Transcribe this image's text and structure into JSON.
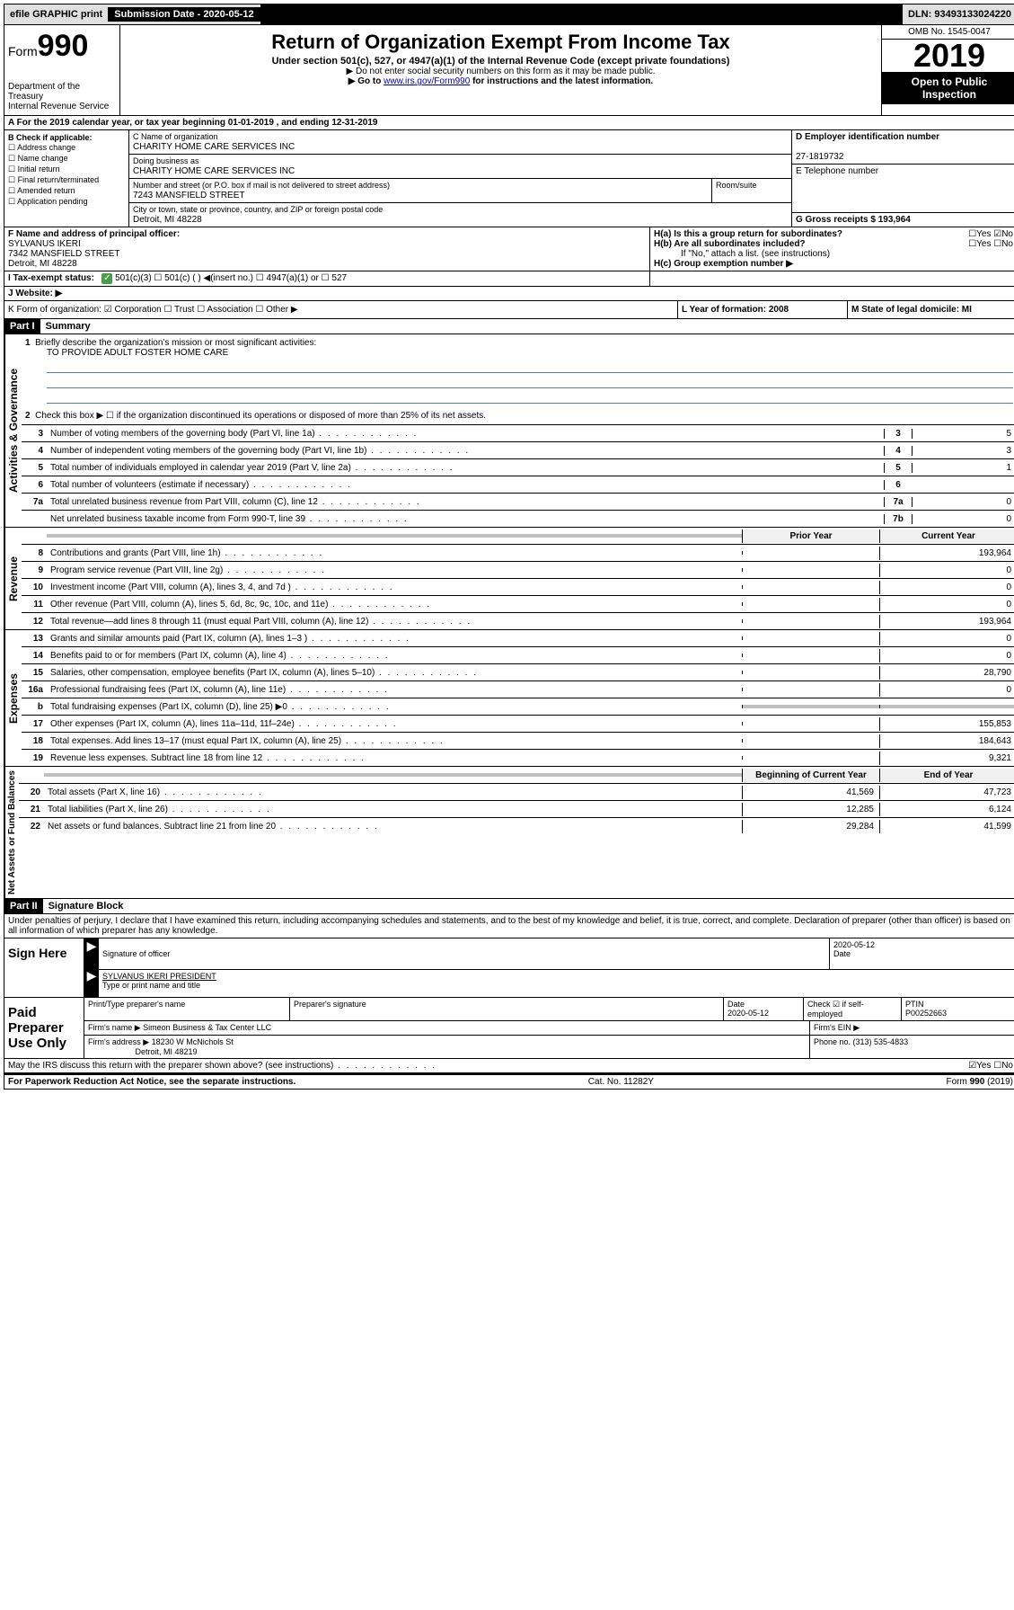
{
  "topbar": {
    "efile": "efile GRAPHIC print",
    "subm_label": "Submission Date - 2020-05-12",
    "dln": "DLN: 93493133024220"
  },
  "header": {
    "form_label": "Form",
    "form_no": "990",
    "dept": "Department of the Treasury",
    "irs": "Internal Revenue Service",
    "title": "Return of Organization Exempt From Income Tax",
    "subtitle": "Under section 501(c), 527, or 4947(a)(1) of the Internal Revenue Code (except private foundations)",
    "note1": "▶ Do not enter social security numbers on this form as it may be made public.",
    "note2_pre": "▶ Go to ",
    "note2_link": "www.irs.gov/Form990",
    "note2_post": " for instructions and the latest information.",
    "omb": "OMB No. 1545-0047",
    "year": "2019",
    "open": "Open to Public Inspection"
  },
  "row_a": "A For the 2019 calendar year, or tax year beginning 01-01-2019   , and ending 12-31-2019",
  "col_b": {
    "header": "B Check if applicable:",
    "items": [
      "☐ Address change",
      "☐ Name change",
      "☐ Initial return",
      "☐ Final return/terminated",
      "☐ Amended return",
      "☐ Application pending"
    ]
  },
  "col_c": {
    "name_label": "C Name of organization",
    "name": "CHARITY HOME CARE SERVICES INC",
    "dba_label": "Doing business as",
    "dba": "CHARITY HOME CARE SERVICES INC",
    "street_label": "Number and street (or P.O. box if mail is not delivered to street address)",
    "street": "7243 MANSFIELD STREET",
    "room_label": "Room/suite",
    "city_label": "City or town, state or province, country, and ZIP or foreign postal code",
    "city": "Detroit, MI  48228"
  },
  "col_d": {
    "ein_label": "D Employer identification number",
    "ein": "27-1819732",
    "phone_label": "E Telephone number",
    "gross_label": "G Gross receipts $ 193,964"
  },
  "row_f": {
    "label": "F  Name and address of principal officer:",
    "name": "SYLVANUS IKERI",
    "street": "7342 MANSFIELD STREET",
    "city": "Detroit, MI  48228"
  },
  "row_h": {
    "ha": "H(a)  Is this a group return for subordinates?",
    "ha_ans": "☐Yes ☑No",
    "hb": "H(b)  Are all subordinates included?",
    "hb_ans": "☐Yes ☐No",
    "hb_note": "If \"No,\" attach a list. (see instructions)",
    "hc": "H(c)  Group exemption number ▶"
  },
  "row_i": {
    "label": "I   Tax-exempt status:",
    "opts": "501(c)(3)   ☐  501(c) (  ) ◀(insert no.)   ☐  4947(a)(1) or  ☐  527"
  },
  "row_j": "J   Website: ▶",
  "row_k": "K Form of organization:  ☑ Corporation ☐ Trust ☐ Association ☐ Other ▶",
  "row_l": "L Year of formation: 2008",
  "row_m": "M State of legal domicile: MI",
  "part1": {
    "header": "Part I",
    "title": "Summary",
    "q1": "Briefly describe the organization's mission or most significant activities:",
    "q1_ans": "TO PROVIDE ADULT FOSTER HOME CARE",
    "q2": "Check this box ▶ ☐  if the organization discontinued its operations or disposed of more than 25% of its net assets.",
    "lines_gov": [
      {
        "n": "3",
        "d": "Number of voting members of the governing body (Part VI, line 1a)",
        "c": "3",
        "v": "5"
      },
      {
        "n": "4",
        "d": "Number of independent voting members of the governing body (Part VI, line 1b)",
        "c": "4",
        "v": "3"
      },
      {
        "n": "5",
        "d": "Total number of individuals employed in calendar year 2019 (Part V, line 2a)",
        "c": "5",
        "v": "1"
      },
      {
        "n": "6",
        "d": "Total number of volunteers (estimate if necessary)",
        "c": "6",
        "v": ""
      },
      {
        "n": "7a",
        "d": "Total unrelated business revenue from Part VIII, column (C), line 12",
        "c": "7a",
        "v": "0"
      },
      {
        "n": "",
        "d": "Net unrelated business taxable income from Form 990-T, line 39",
        "c": "7b",
        "v": "0"
      }
    ],
    "col_prior": "Prior Year",
    "col_current": "Current Year",
    "lines_rev": [
      {
        "n": "8",
        "d": "Contributions and grants (Part VIII, line 1h)",
        "p": "",
        "c": "193,964"
      },
      {
        "n": "9",
        "d": "Program service revenue (Part VIII, line 2g)",
        "p": "",
        "c": "0"
      },
      {
        "n": "10",
        "d": "Investment income (Part VIII, column (A), lines 3, 4, and 7d )",
        "p": "",
        "c": "0"
      },
      {
        "n": "11",
        "d": "Other revenue (Part VIII, column (A), lines 5, 6d, 8c, 9c, 10c, and 11e)",
        "p": "",
        "c": "0"
      },
      {
        "n": "12",
        "d": "Total revenue—add lines 8 through 11 (must equal Part VIII, column (A), line 12)",
        "p": "",
        "c": "193,964"
      }
    ],
    "lines_exp": [
      {
        "n": "13",
        "d": "Grants and similar amounts paid (Part IX, column (A), lines 1–3 )",
        "p": "",
        "c": "0"
      },
      {
        "n": "14",
        "d": "Benefits paid to or for members (Part IX, column (A), line 4)",
        "p": "",
        "c": "0"
      },
      {
        "n": "15",
        "d": "Salaries, other compensation, employee benefits (Part IX, column (A), lines 5–10)",
        "p": "",
        "c": "28,790"
      },
      {
        "n": "16a",
        "d": "Professional fundraising fees (Part IX, column (A), line 11e)",
        "p": "",
        "c": "0"
      },
      {
        "n": "b",
        "d": "Total fundraising expenses (Part IX, column (D), line 25) ▶0",
        "p": "shaded",
        "c": "shaded"
      },
      {
        "n": "17",
        "d": "Other expenses (Part IX, column (A), lines 11a–11d, 11f–24e)",
        "p": "",
        "c": "155,853"
      },
      {
        "n": "18",
        "d": "Total expenses. Add lines 13–17 (must equal Part IX, column (A), line 25)",
        "p": "",
        "c": "184,643"
      },
      {
        "n": "19",
        "d": "Revenue less expenses. Subtract line 18 from line 12",
        "p": "",
        "c": "9,321"
      }
    ],
    "col_begin": "Beginning of Current Year",
    "col_end": "End of Year",
    "lines_net": [
      {
        "n": "20",
        "d": "Total assets (Part X, line 16)",
        "p": "41,569",
        "c": "47,723"
      },
      {
        "n": "21",
        "d": "Total liabilities (Part X, line 26)",
        "p": "12,285",
        "c": "6,124"
      },
      {
        "n": "22",
        "d": "Net assets or fund balances. Subtract line 21 from line 20",
        "p": "29,284",
        "c": "41,599"
      }
    ]
  },
  "labels": {
    "gov": "Activities & Governance",
    "rev": "Revenue",
    "exp": "Expenses",
    "net": "Net Assets or Fund Balances"
  },
  "part2": {
    "header": "Part II",
    "title": "Signature Block",
    "decl": "Under penalties of perjury, I declare that I have examined this return, including accompanying schedules and statements, and to the best of my knowledge and belief, it is true, correct, and complete. Declaration of preparer (other than officer) is based on all information of which preparer has any knowledge."
  },
  "sign": {
    "label": "Sign Here",
    "sig_officer": "Signature of officer",
    "date": "2020-05-12",
    "date_label": "Date",
    "name": "SYLVANUS IKERI PRESIDENT",
    "name_label": "Type or print name and title"
  },
  "paid": {
    "label": "Paid Preparer Use Only",
    "print_label": "Print/Type preparer's name",
    "sig_label": "Preparer's signature",
    "date_label": "Date",
    "date": "2020-05-12",
    "check_label": "Check ☑ if self-employed",
    "ptin_label": "PTIN",
    "ptin": "P00252663",
    "firm_name_label": "Firm's name   ▶",
    "firm_name": "Simeon Business & Tax Center LLC",
    "firm_ein_label": "Firm's EIN ▶",
    "firm_addr_label": "Firm's address ▶",
    "firm_addr": "18230 W McNichols St",
    "firm_city": "Detroit, MI  48219",
    "phone_label": "Phone no. (313) 535-4833"
  },
  "discuss": "May the IRS discuss this return with the preparer shown above? (see instructions)",
  "discuss_ans": "☑Yes  ☐No",
  "footer": {
    "left": "For Paperwork Reduction Act Notice, see the separate instructions.",
    "mid": "Cat. No. 11282Y",
    "right": "Form 990 (2019)"
  }
}
